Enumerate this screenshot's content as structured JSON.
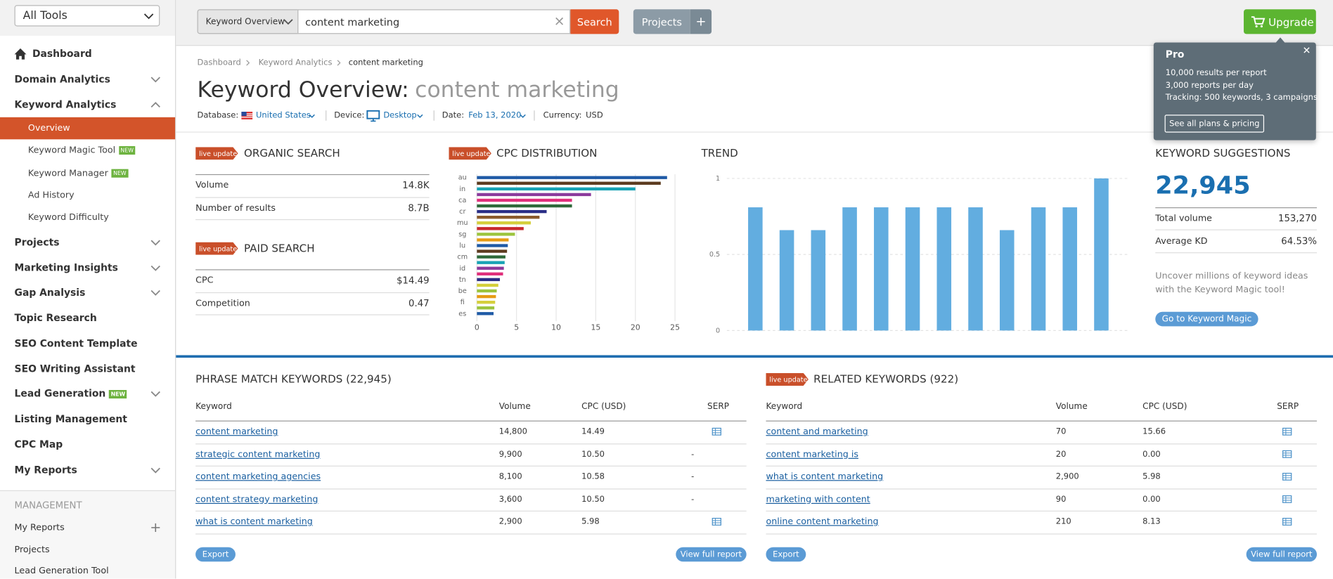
{
  "sidebar": {
    "tool_select": "All Tools",
    "menu": [
      {
        "label": "Dashboard"
      },
      {
        "label": "Domain Analytics"
      },
      {
        "label": "Keyword Analytics",
        "children": [
          {
            "label": "Overview"
          },
          {
            "label": "Keyword Magic Tool",
            "badge": "NEW"
          },
          {
            "label": "Keyword Manager",
            "badge": "NEW"
          },
          {
            "label": "Ad History"
          },
          {
            "label": "Keyword Difficulty"
          }
        ]
      },
      {
        "label": "Projects"
      },
      {
        "label": "Marketing Insights"
      },
      {
        "label": "Gap Analysis"
      },
      {
        "label": "Topic Research"
      },
      {
        "label": "SEO Content Template"
      },
      {
        "label": "SEO Writing Assistant"
      },
      {
        "label": "Lead Generation",
        "badge": "NEW"
      },
      {
        "label": "Listing Management"
      },
      {
        "label": "CPC Map"
      },
      {
        "label": "My Reports"
      }
    ],
    "management": {
      "title": "MANAGEMENT",
      "items": [
        "My Reports",
        "Projects",
        "Lead Generation Tool"
      ]
    }
  },
  "topbar": {
    "report_select": "Keyword Overview",
    "query": "content marketing",
    "search": "Search",
    "projects": "Projects",
    "add": "+",
    "upgrade": "Upgrade"
  },
  "popup": {
    "title": "Pro",
    "lines": [
      "10,000 results per report",
      "3,000 reports per day",
      "Tracking: 500 keywords, 3 campaigns"
    ],
    "button": "See all plans & pricing"
  },
  "breadcrumb": [
    "Dashboard",
    "Keyword Analytics",
    "content marketing"
  ],
  "heading": {
    "label": "Keyword Overview:",
    "keyword": "content marketing"
  },
  "filters": [
    {
      "label": "Database:",
      "value": "United States"
    },
    {
      "label": "Device:",
      "value": "Desktop"
    },
    {
      "label": "Date:",
      "value": "Feb 13, 2020"
    },
    {
      "label": "Currency:",
      "value": "USD"
    }
  ],
  "badge": "live update",
  "organic": {
    "title": "ORGANIC SEARCH",
    "rows": [
      [
        "Volume",
        "14.8K"
      ],
      [
        "Number of results",
        "8.7B"
      ]
    ]
  },
  "paid": {
    "title": "PAID SEARCH",
    "rows": [
      [
        "CPC",
        "$14.49"
      ],
      [
        "Competition",
        "0.47"
      ]
    ]
  },
  "chart_data": [
    {
      "type": "bar",
      "orientation": "horizontal",
      "title": "CPC DISTRIBUTION",
      "categories": [
        "au",
        null,
        "in",
        null,
        "ca",
        null,
        "cr",
        null,
        "mu",
        null,
        "sg",
        null,
        "lu",
        null,
        "cm",
        null,
        "id",
        null,
        "tn",
        null,
        "be",
        null,
        "fi",
        null,
        "es"
      ],
      "values": [
        24.0,
        23.2,
        20.0,
        14.4,
        12.0,
        12.0,
        8.8,
        7.9,
        6.8,
        5.9,
        4.8,
        4.0,
        3.9,
        3.8,
        3.6,
        3.5,
        3.4,
        3.3,
        2.9,
        2.7,
        2.5,
        2.4,
        2.3,
        2.2,
        2.1
      ],
      "colors": [
        "#1f5aa6",
        "#5c3b1f",
        "#18a3b5",
        "#8b3a9c",
        "#e0307c",
        "#2f6a3a",
        "#2a2e86",
        "#8a5b2c",
        "#d5cf3c",
        "#c8282c",
        "#9cc43e",
        "#e69b14",
        "#1f5aa6",
        "#5c3b1f",
        "#2f6a3a",
        "#18a3b5",
        "#8b3a9c",
        "#e0307c",
        "#2a2e86",
        "#d5cf3c",
        "#9cc43e",
        "#e69b14",
        "#d5cf3c",
        "#9cc43e",
        "#1f5aa6"
      ],
      "xlim": [
        0,
        25
      ],
      "xticks": [
        0,
        5,
        10,
        15,
        20,
        25
      ],
      "grid": true
    },
    {
      "type": "bar",
      "title": "TREND",
      "values": [
        0.81,
        0.66,
        0.66,
        0.81,
        0.81,
        0.81,
        0.81,
        0.81,
        0.66,
        0.81,
        0.81,
        1
      ],
      "color": "#62ade0",
      "ylim": [
        0,
        1
      ],
      "yticks": [
        0,
        0.5,
        1
      ],
      "grid": true
    }
  ],
  "suggestions": {
    "title": "KEYWORD SUGGESTIONS",
    "count": "22,945",
    "rows": [
      [
        "Total volume",
        "153,270"
      ],
      [
        "Average KD",
        "64.53%"
      ]
    ],
    "text": "Uncover millions of keyword ideas with the Keyword Magic tool!",
    "button": "Go to Keyword Magic"
  },
  "phrase_match": {
    "title": "PHRASE MATCH KEYWORDS (22,945)",
    "headers": [
      "Keyword",
      "Volume",
      "CPC (USD)",
      "SERP"
    ],
    "rows": [
      [
        "content marketing",
        "14,800",
        "14.49"
      ],
      [
        "strategic content marketing",
        "9,900",
        "10.50",
        "-"
      ],
      [
        "content marketing agencies",
        "8,100",
        "10.58",
        "-"
      ],
      [
        "content strategy marketing",
        "3,600",
        "10.50",
        "-"
      ],
      [
        "what is content marketing",
        "2,900",
        "5.98"
      ]
    ],
    "export": "Export",
    "full_report": "View full report"
  },
  "related": {
    "title": "RELATED KEYWORDS (922)",
    "headers": [
      "Keyword",
      "Volume",
      "CPC (USD)",
      "SERP"
    ],
    "rows": [
      [
        "content and marketing",
        "70",
        "15.66"
      ],
      [
        "content marketing is",
        "20",
        "0.00"
      ],
      [
        "what is content marketing",
        "2,900",
        "5.98"
      ],
      [
        "marketing with content",
        "90",
        "0.00"
      ],
      [
        "online content marketing",
        "210",
        "8.13"
      ]
    ],
    "export": "Export",
    "full_report": "View full report"
  }
}
